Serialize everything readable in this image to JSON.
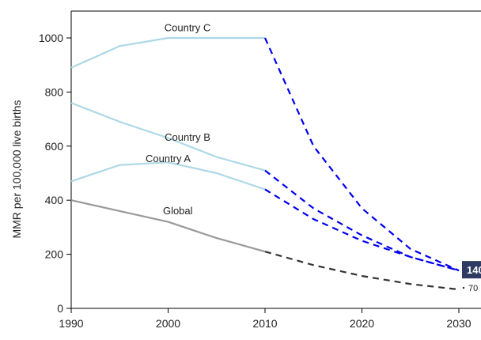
{
  "chart_data": {
    "type": "line",
    "title": "",
    "xlabel": "",
    "ylabel": "MMR per 100,000 live births",
    "xlim": [
      1990,
      2030
    ],
    "ylim": [
      0,
      1000
    ],
    "x_ticks": [
      1990,
      2000,
      2010,
      2020,
      2030
    ],
    "y_ticks": [
      0,
      200,
      400,
      600,
      800,
      1000
    ],
    "grid": false,
    "legend": "none",
    "series": [
      {
        "name": "Country C",
        "color_observed": "#add8e6",
        "color_projected": "#0000ee",
        "observed": {
          "x": [
            1990,
            1995,
            2000,
            2005,
            2010
          ],
          "y": [
            890,
            970,
            1000,
            1000,
            1000
          ]
        },
        "projected": {
          "x": [
            2010,
            2015,
            2020,
            2025,
            2030
          ],
          "y": [
            1000,
            600,
            370,
            220,
            140
          ]
        }
      },
      {
        "name": "Country B",
        "color_observed": "#add8e6",
        "color_projected": "#0000ee",
        "observed": {
          "x": [
            1990,
            1995,
            2000,
            2005,
            2010
          ],
          "y": [
            760,
            690,
            630,
            560,
            510
          ]
        },
        "projected": {
          "x": [
            2010,
            2015,
            2020,
            2025,
            2030
          ],
          "y": [
            510,
            370,
            270,
            190,
            140
          ]
        }
      },
      {
        "name": "Country A",
        "color_observed": "#add8e6",
        "color_projected": "#0000ee",
        "observed": {
          "x": [
            1990,
            1995,
            2000,
            2005,
            2010
          ],
          "y": [
            470,
            530,
            540,
            500,
            440
          ]
        },
        "projected": {
          "x": [
            2010,
            2015,
            2020,
            2025,
            2030
          ],
          "y": [
            440,
            330,
            250,
            190,
            140
          ]
        }
      },
      {
        "name": "Global",
        "color_observed": "#999999",
        "color_projected": "#333333",
        "observed": {
          "x": [
            1990,
            1995,
            2000,
            2005,
            2010
          ],
          "y": [
            400,
            360,
            320,
            260,
            210
          ]
        },
        "projected": {
          "x": [
            2010,
            2015,
            2020,
            2025,
            2030
          ],
          "y": [
            210,
            160,
            120,
            90,
            70
          ]
        }
      }
    ],
    "annotations": [
      {
        "text": "140",
        "x": 2030,
        "y": 140,
        "style": "boxed",
        "bg": "#2e3a63",
        "color": "#ffffff"
      },
      {
        "text": "70",
        "x": 2030,
        "y": 70,
        "style": "plain",
        "color": "#222222"
      }
    ]
  }
}
